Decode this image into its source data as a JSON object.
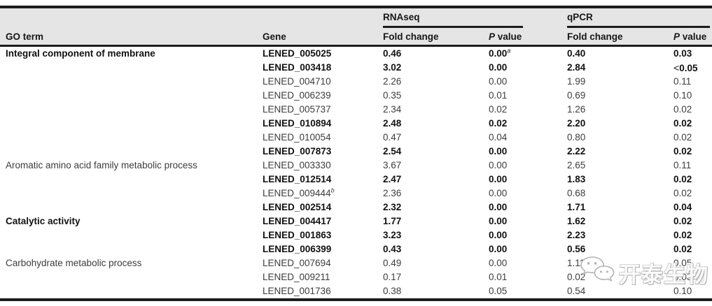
{
  "table": {
    "group_headers": {
      "rnaseq": "RNAseq",
      "qpcr": "qPCR"
    },
    "col_headers": {
      "go_term": "GO term",
      "gene": "Gene",
      "rnaseq_fold_change": "Fold change",
      "rnaseq_p_value": "P value",
      "qpcr_fold_change": "Fold change",
      "qpcr_p_value": "P value"
    },
    "rows": [
      {
        "go_term": "Integral component of membrane",
        "gene": "LENED_005025",
        "bold": true,
        "rnaseq_fc": "0.46",
        "rnaseq_p": "0.00",
        "rnaseq_p_sup": "a",
        "qpcr_fc": "0.40",
        "qpcr_p": "0.03"
      },
      {
        "go_term": "",
        "gene": "LENED_003418",
        "bold": true,
        "rnaseq_fc": "3.02",
        "rnaseq_p": "0.00",
        "qpcr_fc": "2.84",
        "qpcr_p": "<0.05"
      },
      {
        "go_term": "",
        "gene": "LENED_004710",
        "bold": false,
        "rnaseq_fc": "2.26",
        "rnaseq_p": "0.00",
        "qpcr_fc": "1.99",
        "qpcr_p": "0.11"
      },
      {
        "go_term": "",
        "gene": "LENED_006239",
        "bold": false,
        "rnaseq_fc": "0.35",
        "rnaseq_p": "0.01",
        "qpcr_fc": "0.69",
        "qpcr_p": "0.10"
      },
      {
        "go_term": "",
        "gene": "LENED_005737",
        "bold": false,
        "rnaseq_fc": "2.34",
        "rnaseq_p": "0.02",
        "qpcr_fc": "1.26",
        "qpcr_p": "0.02"
      },
      {
        "go_term": "",
        "gene": "LENED_010894",
        "bold": true,
        "rnaseq_fc": "2.48",
        "rnaseq_p": "0.02",
        "qpcr_fc": "2.20",
        "qpcr_p": "0.02"
      },
      {
        "go_term": "",
        "gene": "LENED_010054",
        "bold": false,
        "rnaseq_fc": "0.47",
        "rnaseq_p": "0.04",
        "qpcr_fc": "0.80",
        "qpcr_p": "0.02"
      },
      {
        "go_term": "",
        "gene": "LENED_007873",
        "bold": true,
        "rnaseq_fc": "2.54",
        "rnaseq_p": "0.00",
        "qpcr_fc": "2.22",
        "qpcr_p": "0.02"
      },
      {
        "go_term": "Aromatic amino acid family metabolic process",
        "gene": "LENED_003330",
        "bold": false,
        "rnaseq_fc": "3.67",
        "rnaseq_p": "0.00",
        "qpcr_fc": "2.65",
        "qpcr_p": "0.11"
      },
      {
        "go_term": "",
        "gene": "LENED_012514",
        "bold": true,
        "rnaseq_fc": "2.47",
        "rnaseq_p": "0.00",
        "qpcr_fc": "1.83",
        "qpcr_p": "0.02"
      },
      {
        "go_term": "",
        "gene": "LENED_009444",
        "gene_sup": "b",
        "bold": false,
        "rnaseq_fc": "2.36",
        "rnaseq_p": "0.00",
        "qpcr_fc": "0.68",
        "qpcr_p": "0.02"
      },
      {
        "go_term": "",
        "gene": "LENED_002514",
        "bold": true,
        "rnaseq_fc": "2.32",
        "rnaseq_p": "0.00",
        "qpcr_fc": "1.71",
        "qpcr_p": "0.04"
      },
      {
        "go_term": "Catalytic activity",
        "gene": "LENED_004417",
        "bold": true,
        "rnaseq_fc": "1.77",
        "rnaseq_p": "0.00",
        "qpcr_fc": "1.62",
        "qpcr_p": "0.02"
      },
      {
        "go_term": "",
        "gene": "LENED_001863",
        "bold": true,
        "rnaseq_fc": "3.23",
        "rnaseq_p": "0.00",
        "qpcr_fc": "2.23",
        "qpcr_p": "0.02"
      },
      {
        "go_term": "",
        "gene": "LENED_006399",
        "bold": true,
        "rnaseq_fc": "0.43",
        "rnaseq_p": "0.00",
        "qpcr_fc": "0.56",
        "qpcr_p": "0.02"
      },
      {
        "go_term": "Carbohydrate metabolic process",
        "gene": "LENED_007694",
        "bold": false,
        "rnaseq_fc": "0.49",
        "rnaseq_p": "0.00",
        "qpcr_fc": "1.11",
        "qpcr_p": "0.05"
      },
      {
        "go_term": "",
        "gene": "LENED_009211",
        "bold": false,
        "rnaseq_fc": "0.17",
        "rnaseq_p": "0.01",
        "qpcr_fc": "0.02",
        "qpcr_p": "0.05"
      },
      {
        "go_term": "",
        "gene": "LENED_001736",
        "bold": false,
        "rnaseq_fc": "0.38",
        "rnaseq_p": "0.05",
        "qpcr_fc": "0.54",
        "qpcr_p": "0.10"
      }
    ]
  },
  "watermark": {
    "text": "开泰生物",
    "icon": "wechat-icon"
  },
  "colors": {
    "header_bg": "#e5e5e5",
    "rule": "#1c1c1c",
    "bold_text": "#111111",
    "regular_text": "#3c3c3c"
  }
}
